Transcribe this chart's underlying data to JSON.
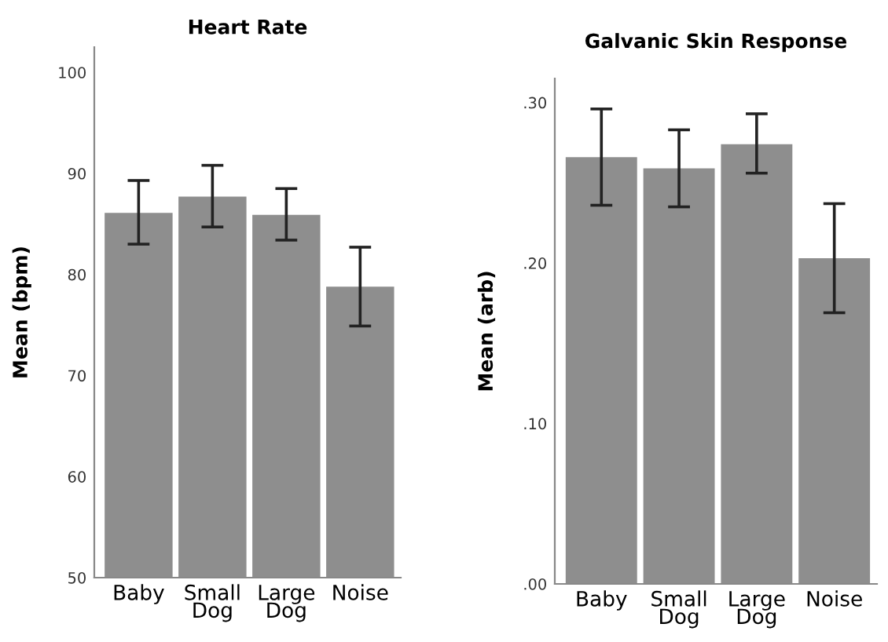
{
  "chart_data": [
    {
      "type": "bar",
      "title": "Heart Rate",
      "ylabel": "Mean (bpm)",
      "categories": [
        "Baby",
        "Small\nDog",
        "Large\nDog",
        "Noise"
      ],
      "values": [
        86.1,
        87.7,
        85.9,
        78.8
      ],
      "errors": [
        [
          83.0,
          89.3
        ],
        [
          84.7,
          90.8
        ],
        [
          83.4,
          88.5
        ],
        [
          74.9,
          82.7
        ]
      ],
      "color": "#8e8e8e",
      "ylim": [
        50,
        102.5
      ],
      "yticks": [
        50,
        60,
        70,
        80,
        90,
        100
      ],
      "grid": false
    },
    {
      "type": "bar",
      "title": "Galvanic Skin Response",
      "ylabel": "Mean (arb)",
      "categories": [
        "Baby",
        "Small\nDog",
        "Large\nDog",
        "Noise"
      ],
      "values": [
        0.266,
        0.259,
        0.274,
        0.203
      ],
      "errors": [
        [
          0.236,
          0.296
        ],
        [
          0.235,
          0.283
        ],
        [
          0.256,
          0.293
        ],
        [
          0.169,
          0.237
        ]
      ],
      "color": "#8e8e8e",
      "ylim": [
        0,
        0.315
      ],
      "yticks": [
        {
          "value": 0,
          "label": ".00"
        },
        {
          "value": 0.1,
          "label": ".10"
        },
        {
          "value": 0.2,
          "label": ".20"
        },
        {
          "value": 0.3,
          "label": ".30"
        }
      ],
      "grid": false
    }
  ]
}
